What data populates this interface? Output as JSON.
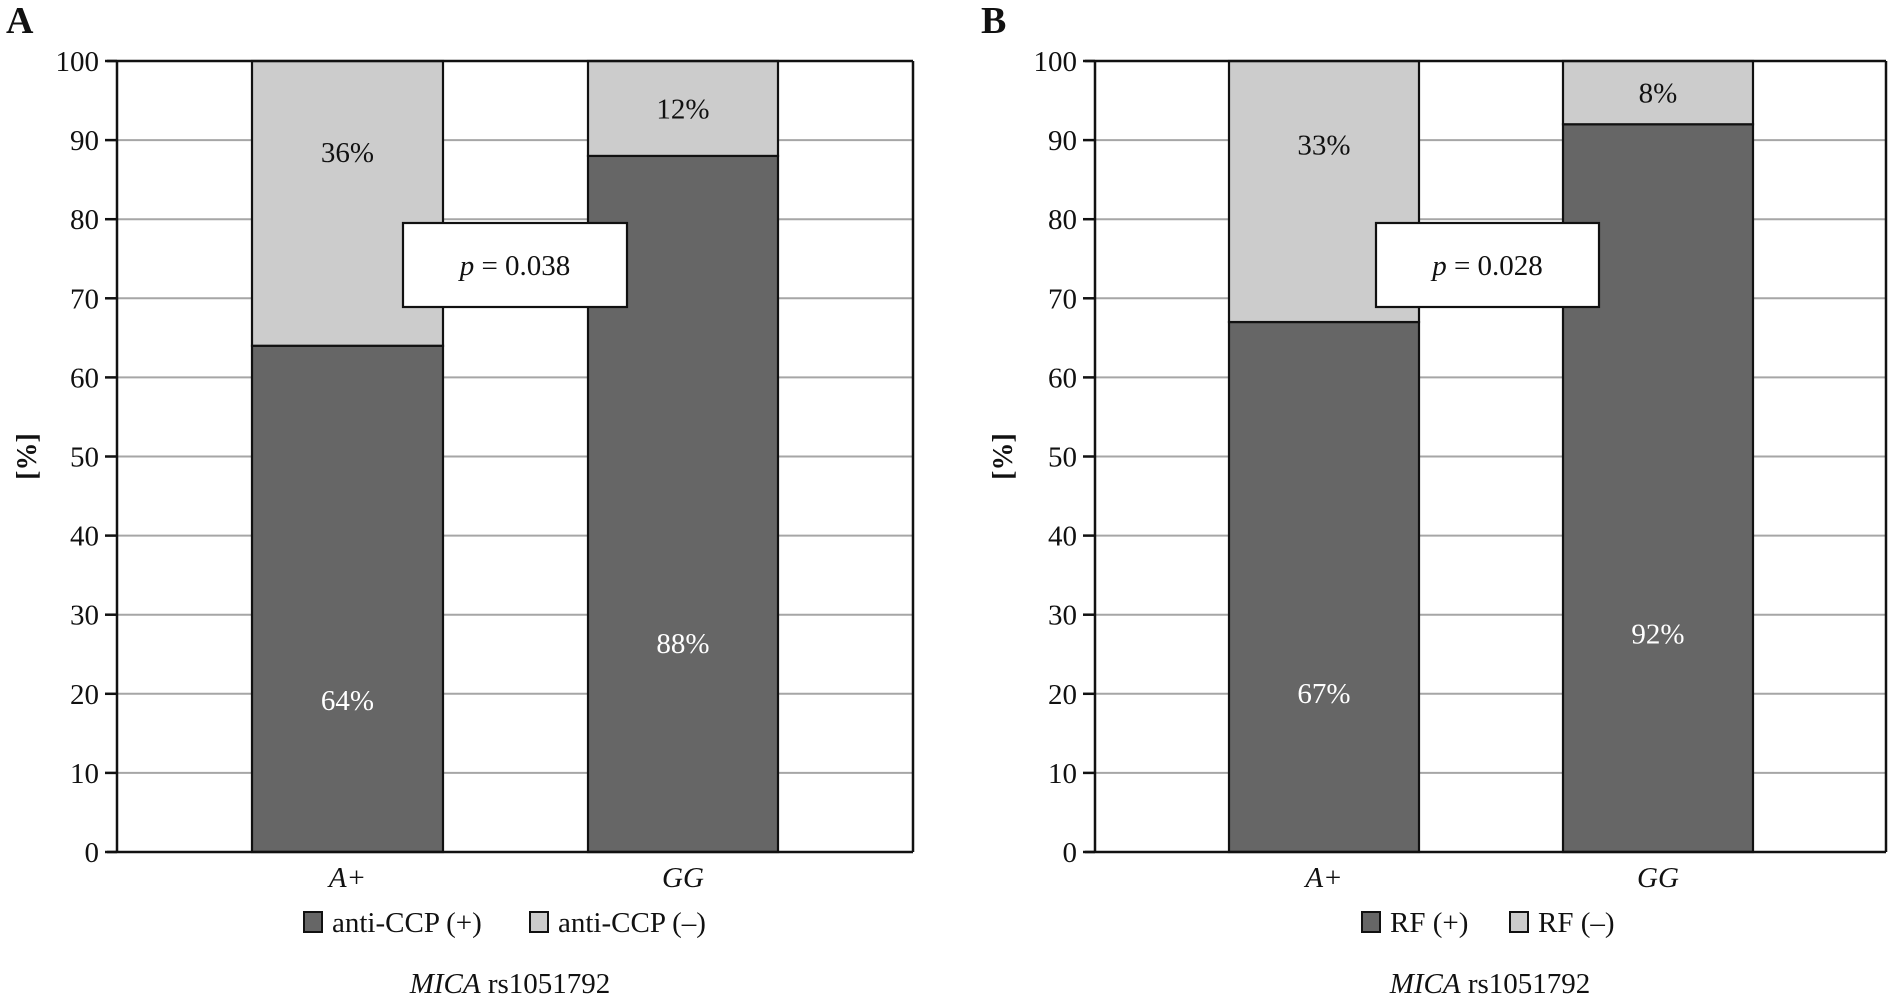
{
  "chart_data": [
    {
      "type": "bar",
      "stacked": true,
      "panel": "A",
      "title": "",
      "xlabel_italic": "MICA",
      "xlabel_rest": " rs1051792",
      "ylabel": "[%]",
      "ylim": [
        0,
        100
      ],
      "yticks": [
        0,
        10,
        20,
        30,
        40,
        50,
        60,
        70,
        80,
        90,
        100
      ],
      "grid": true,
      "categories": [
        "A+",
        "GG"
      ],
      "series": [
        {
          "name": "anti-CCP (+)",
          "values": [
            64,
            88
          ],
          "labels": [
            "64%",
            "88%"
          ],
          "color": "#666666",
          "label_color": "#ffffff"
        },
        {
          "name": "anti-CCP (–)",
          "values": [
            36,
            12
          ],
          "labels": [
            "36%",
            "12%"
          ],
          "color": "#cccccc",
          "label_color": "#111111"
        }
      ],
      "annotation": {
        "italic": "p",
        "text": " = 0.038"
      },
      "legend_position": "bottom"
    },
    {
      "type": "bar",
      "stacked": true,
      "panel": "B",
      "title": "",
      "xlabel_italic": "MICA",
      "xlabel_rest": " rs1051792",
      "ylabel": "[%]",
      "ylim": [
        0,
        100
      ],
      "yticks": [
        0,
        10,
        20,
        30,
        40,
        50,
        60,
        70,
        80,
        90,
        100
      ],
      "grid": true,
      "categories": [
        "A+",
        "GG"
      ],
      "series": [
        {
          "name": "RF (+)",
          "values": [
            67,
            92
          ],
          "labels": [
            "67%",
            "92%"
          ],
          "color": "#666666",
          "label_color": "#ffffff"
        },
        {
          "name": "RF (–)",
          "values": [
            33,
            8
          ],
          "labels": [
            "33%",
            "8%"
          ],
          "color": "#cccccc",
          "label_color": "#111111"
        }
      ],
      "annotation": {
        "italic": "p",
        "text": " = 0.028"
      },
      "legend_position": "bottom"
    }
  ]
}
